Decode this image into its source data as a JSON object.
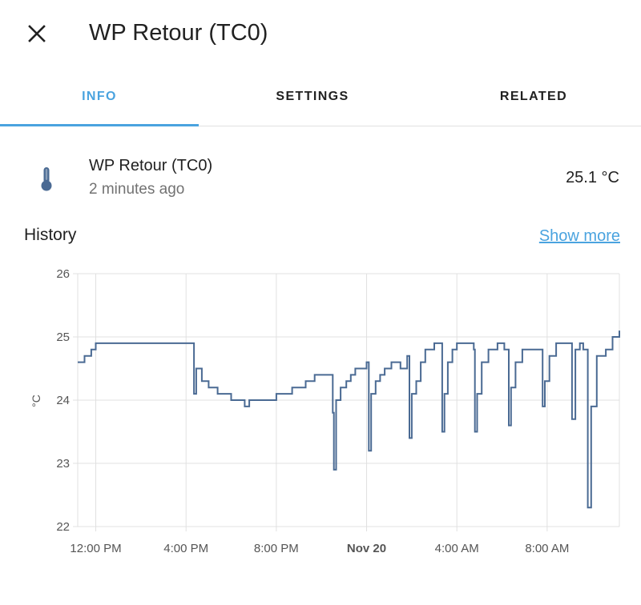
{
  "dialog": {
    "title": "WP Retour (TC0)",
    "close_icon": "close-icon"
  },
  "tabs": [
    {
      "label": "INFO",
      "active": true
    },
    {
      "label": "SETTINGS",
      "active": false
    },
    {
      "label": "RELATED",
      "active": false
    }
  ],
  "entity": {
    "icon": "thermometer-icon",
    "name": "WP Retour (TC0)",
    "last_changed": "2 minutes ago",
    "value": "25.1 °C"
  },
  "history": {
    "title": "History",
    "show_more": "Show more"
  },
  "colors": {
    "accent": "#4aa3df",
    "line": "#4a6a93",
    "grid": "#e0e0e0"
  },
  "chart_data": {
    "type": "line",
    "ylabel": "°C",
    "ylim": [
      22,
      26
    ],
    "yticks": [
      "22",
      "23",
      "24",
      "25",
      "26"
    ],
    "xlim": [
      11.2,
      35.2
    ],
    "xticks": [
      {
        "t": 12,
        "label": "12:00 PM",
        "bold": false
      },
      {
        "t": 16,
        "label": "4:00 PM",
        "bold": false
      },
      {
        "t": 20,
        "label": "8:00 PM",
        "bold": false
      },
      {
        "t": 24,
        "label": "Nov 20",
        "bold": true
      },
      {
        "t": 28,
        "label": "4:00 AM",
        "bold": false
      },
      {
        "t": 32,
        "label": "8:00 AM",
        "bold": false
      }
    ],
    "series": [
      {
        "points": [
          [
            11.2,
            24.6
          ],
          [
            11.5,
            24.7
          ],
          [
            11.8,
            24.8
          ],
          [
            12.0,
            24.9
          ],
          [
            13.5,
            24.9
          ],
          [
            14.5,
            24.9
          ],
          [
            15.5,
            24.9
          ],
          [
            16.2,
            24.9
          ],
          [
            16.35,
            24.1
          ],
          [
            16.45,
            24.5
          ],
          [
            16.7,
            24.3
          ],
          [
            17.0,
            24.2
          ],
          [
            17.4,
            24.1
          ],
          [
            18.0,
            24.0
          ],
          [
            18.5,
            24.0
          ],
          [
            18.6,
            23.9
          ],
          [
            18.8,
            24.0
          ],
          [
            19.5,
            24.0
          ],
          [
            20.0,
            24.1
          ],
          [
            20.7,
            24.2
          ],
          [
            21.3,
            24.3
          ],
          [
            21.7,
            24.4
          ],
          [
            22.3,
            24.4
          ],
          [
            22.5,
            23.8
          ],
          [
            22.55,
            22.9
          ],
          [
            22.65,
            24.0
          ],
          [
            22.85,
            24.2
          ],
          [
            23.1,
            24.3
          ],
          [
            23.3,
            24.4
          ],
          [
            23.5,
            24.5
          ],
          [
            23.8,
            24.5
          ],
          [
            24.0,
            24.6
          ],
          [
            24.1,
            23.2
          ],
          [
            24.2,
            24.1
          ],
          [
            24.4,
            24.3
          ],
          [
            24.6,
            24.4
          ],
          [
            24.8,
            24.5
          ],
          [
            25.1,
            24.6
          ],
          [
            25.5,
            24.5
          ],
          [
            25.8,
            24.7
          ],
          [
            25.9,
            23.4
          ],
          [
            26.0,
            24.1
          ],
          [
            26.2,
            24.3
          ],
          [
            26.4,
            24.6
          ],
          [
            26.6,
            24.8
          ],
          [
            27.0,
            24.9
          ],
          [
            27.3,
            24.9
          ],
          [
            27.35,
            23.5
          ],
          [
            27.45,
            24.1
          ],
          [
            27.6,
            24.6
          ],
          [
            27.8,
            24.8
          ],
          [
            28.0,
            24.9
          ],
          [
            28.4,
            24.9
          ],
          [
            28.75,
            24.8
          ],
          [
            28.8,
            23.5
          ],
          [
            28.9,
            24.1
          ],
          [
            29.1,
            24.6
          ],
          [
            29.4,
            24.8
          ],
          [
            29.8,
            24.9
          ],
          [
            30.1,
            24.8
          ],
          [
            30.25,
            24.8
          ],
          [
            30.3,
            23.6
          ],
          [
            30.4,
            24.2
          ],
          [
            30.6,
            24.6
          ],
          [
            30.9,
            24.8
          ],
          [
            31.3,
            24.8
          ],
          [
            31.75,
            24.8
          ],
          [
            31.8,
            23.9
          ],
          [
            31.9,
            24.3
          ],
          [
            32.1,
            24.7
          ],
          [
            32.4,
            24.9
          ],
          [
            32.8,
            24.9
          ],
          [
            33.0,
            24.9
          ],
          [
            33.1,
            23.7
          ],
          [
            33.25,
            24.8
          ],
          [
            33.45,
            24.9
          ],
          [
            33.6,
            24.8
          ],
          [
            33.8,
            22.3
          ],
          [
            33.95,
            23.9
          ],
          [
            34.2,
            24.7
          ],
          [
            34.6,
            24.8
          ],
          [
            34.9,
            25.0
          ],
          [
            35.2,
            25.1
          ]
        ]
      }
    ]
  }
}
